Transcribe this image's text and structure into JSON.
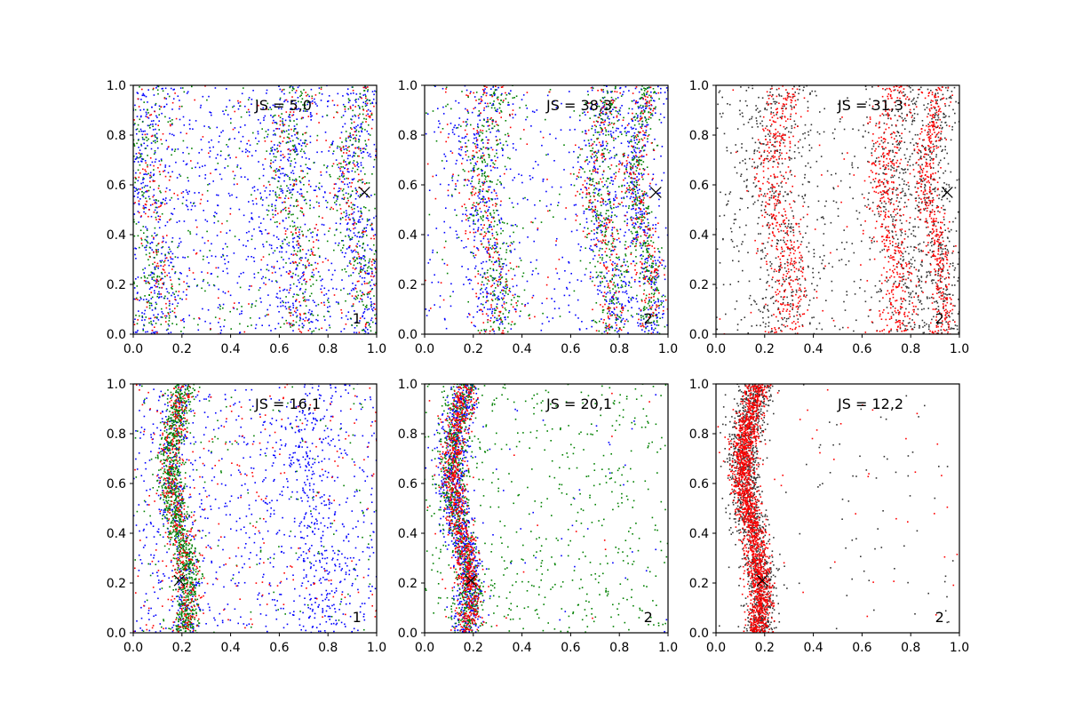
{
  "chart_data": [
    {
      "type": "scatter",
      "panel_label": "JS = 5,0",
      "corner_label": "1",
      "xlim": [
        0,
        1
      ],
      "ylim": [
        0,
        1
      ],
      "xticks": [
        "0.0",
        "0.2",
        "0.4",
        "0.6",
        "0.8",
        "1.0"
      ],
      "yticks": [
        "0.0",
        "0.2",
        "0.4",
        "0.6",
        "0.8",
        "1.0"
      ],
      "marker": {
        "x": 0.95,
        "y": 0.57
      },
      "series": [
        {
          "color": "#0000ff",
          "points": 1500,
          "pattern": "bands",
          "bands": [
            [
              0.07,
              0.06
            ],
            [
              0.65,
              0.06
            ],
            [
              0.93,
              0.04
            ]
          ],
          "bg": 0.55
        },
        {
          "color": "#008000",
          "points": 900,
          "pattern": "bands",
          "bands": [
            [
              0.07,
              0.05
            ],
            [
              0.67,
              0.05
            ],
            [
              0.93,
              0.04
            ]
          ],
          "bg": 0.3
        },
        {
          "color": "#ff0000",
          "points": 500,
          "pattern": "bands",
          "bands": [
            [
              0.08,
              0.05
            ],
            [
              0.66,
              0.05
            ],
            [
              0.93,
              0.04
            ]
          ],
          "bg": 0.3
        }
      ]
    },
    {
      "type": "scatter",
      "panel_label": "JS = 38,3",
      "corner_label": "2",
      "xlim": [
        0,
        1
      ],
      "ylim": [
        0,
        1
      ],
      "xticks": [
        "0.0",
        "0.2",
        "0.4",
        "0.6",
        "0.8",
        "1.0"
      ],
      "yticks": [
        "0.0",
        "0.2",
        "0.4",
        "0.6",
        "0.8",
        "1.0"
      ],
      "marker": {
        "x": 0.95,
        "y": 0.57
      },
      "series": [
        {
          "color": "#0000ff",
          "points": 1300,
          "pattern": "bands",
          "bands": [
            [
              0.25,
              0.06
            ],
            [
              0.75,
              0.05
            ],
            [
              0.9,
              0.03
            ]
          ],
          "bg": 0.3
        },
        {
          "color": "#008000",
          "points": 1100,
          "pattern": "bands",
          "bands": [
            [
              0.9,
              0.025
            ],
            [
              0.27,
              0.05
            ],
            [
              0.74,
              0.04
            ]
          ],
          "bg": 0.1
        },
        {
          "color": "#ff0000",
          "points": 700,
          "pattern": "bands",
          "bands": [
            [
              0.9,
              0.03
            ],
            [
              0.74,
              0.04
            ],
            [
              0.25,
              0.05
            ]
          ],
          "bg": 0.1
        }
      ]
    },
    {
      "type": "scatter",
      "panel_label": "JS = 31,3",
      "corner_label": "2",
      "xlim": [
        0,
        1
      ],
      "ylim": [
        0,
        1
      ],
      "xticks": [
        "0.0",
        "0.2",
        "0.4",
        "0.6",
        "0.8",
        "1.0"
      ],
      "yticks": [
        "0.0",
        "0.2",
        "0.4",
        "0.6",
        "0.8",
        "1.0"
      ],
      "marker": {
        "x": 0.95,
        "y": 0.57
      },
      "series": [
        {
          "color": "#333333",
          "points": 1500,
          "pattern": "bands",
          "bands": [
            [
              0.92,
              0.04
            ],
            [
              0.78,
              0.05
            ],
            [
              0.25,
              0.07
            ]
          ],
          "bg": 0.4
        },
        {
          "color": "#ff0000",
          "points": 1400,
          "pattern": "bands",
          "bands": [
            [
              0.9,
              0.025
            ],
            [
              0.72,
              0.04
            ],
            [
              0.27,
              0.04
            ]
          ],
          "bg": 0.05
        }
      ]
    },
    {
      "type": "scatter",
      "panel_label": "JS = 16,1",
      "corner_label": "1",
      "xlim": [
        0,
        1
      ],
      "ylim": [
        0,
        1
      ],
      "xticks": [
        "0.0",
        "0.2",
        "0.4",
        "0.6",
        "0.8",
        "1.0"
      ],
      "yticks": [
        "0.0",
        "0.2",
        "0.4",
        "0.6",
        "0.8",
        "1.0"
      ],
      "marker": {
        "x": 0.19,
        "y": 0.21
      },
      "series": [
        {
          "color": "#0000ff",
          "points": 1300,
          "pattern": "bands",
          "bands": [
            [
              0.19,
              0.03
            ],
            [
              0.75,
              0.06
            ]
          ],
          "bg": 0.55
        },
        {
          "color": "#008000",
          "points": 1200,
          "pattern": "bands",
          "bands": [
            [
              0.19,
              0.025
            ]
          ],
          "bg": 0.12
        },
        {
          "color": "#ff0000",
          "points": 600,
          "pattern": "bands",
          "bands": [
            [
              0.19,
              0.03
            ]
          ],
          "bg": 0.35
        }
      ]
    },
    {
      "type": "scatter",
      "panel_label": "JS = 20,1",
      "corner_label": "2",
      "xlim": [
        0,
        1
      ],
      "ylim": [
        0,
        1
      ],
      "xticks": [
        "0.0",
        "0.2",
        "0.4",
        "0.6",
        "0.8",
        "1.0"
      ],
      "yticks": [
        "0.0",
        "0.2",
        "0.4",
        "0.6",
        "0.8",
        "1.0"
      ],
      "marker": {
        "x": 0.19,
        "y": 0.21
      },
      "series": [
        {
          "color": "#0000ff",
          "points": 1000,
          "pattern": "bands",
          "bands": [
            [
              0.15,
              0.03
            ]
          ],
          "bg": 0.05
        },
        {
          "color": "#008000",
          "points": 1200,
          "pattern": "bands",
          "bands": [
            [
              0.15,
              0.03
            ]
          ],
          "bg": 0.45
        },
        {
          "color": "#ff0000",
          "points": 900,
          "pattern": "bands",
          "bands": [
            [
              0.15,
              0.025
            ]
          ],
          "bg": 0.02
        }
      ]
    },
    {
      "type": "scatter",
      "panel_label": "JS = 12,2",
      "corner_label": "2",
      "xlim": [
        0,
        1
      ],
      "ylim": [
        0,
        1
      ],
      "xticks": [
        "0.0",
        "0.2",
        "0.4",
        "0.6",
        "0.8",
        "1.0"
      ],
      "yticks": [
        "0.0",
        "0.2",
        "0.4",
        "0.6",
        "0.8",
        "1.0"
      ],
      "marker": {
        "x": 0.19,
        "y": 0.21
      },
      "series": [
        {
          "color": "#333333",
          "points": 1400,
          "pattern": "bands",
          "bands": [
            [
              0.15,
              0.035
            ]
          ],
          "bg": 0.06
        },
        {
          "color": "#ff0000",
          "points": 1700,
          "pattern": "bands",
          "bands": [
            [
              0.15,
              0.025
            ]
          ],
          "bg": 0.03
        }
      ]
    }
  ]
}
